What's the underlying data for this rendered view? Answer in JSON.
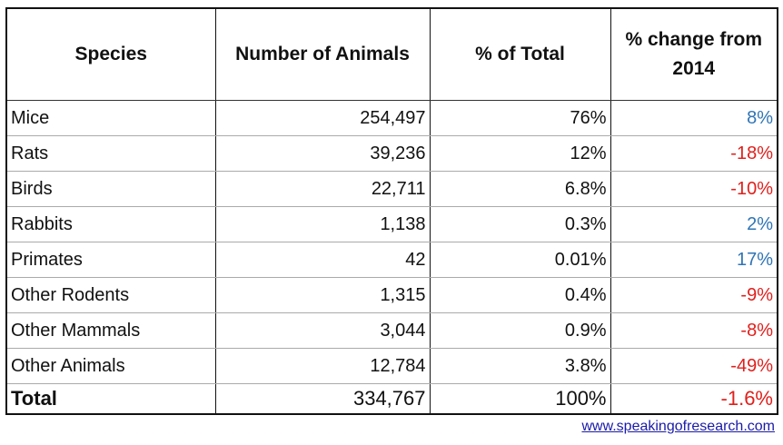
{
  "colors": {
    "positive": "#2e75b6",
    "negative": "#e0201c"
  },
  "headers": [
    "Species",
    "Number of Animals",
    "% of Total",
    "% change from 2014"
  ],
  "rows": [
    {
      "species": "Mice",
      "number": "254,497",
      "percent": "76%",
      "change": "8%",
      "trend": "pos"
    },
    {
      "species": "Rats",
      "number": "39,236",
      "percent": "12%",
      "change": "-18%",
      "trend": "neg"
    },
    {
      "species": "Birds",
      "number": "22,711",
      "percent": "6.8%",
      "change": "-10%",
      "trend": "neg"
    },
    {
      "species": "Rabbits",
      "number": "1,138",
      "percent": "0.3%",
      "change": "2%",
      "trend": "pos"
    },
    {
      "species": "Primates",
      "number": "42",
      "percent": "0.01%",
      "change": "17%",
      "trend": "pos"
    },
    {
      "species": "Other Rodents",
      "number": "1,315",
      "percent": "0.4%",
      "change": "-9%",
      "trend": "neg"
    },
    {
      "species": "Other Mammals",
      "number": "3,044",
      "percent": "0.9%",
      "change": "-8%",
      "trend": "neg"
    },
    {
      "species": "Other Animals",
      "number": "12,784",
      "percent": "3.8%",
      "change": "-49%",
      "trend": "neg"
    }
  ],
  "total": {
    "species": "Total",
    "number": "334,767",
    "percent": "100%",
    "change": "-1.6%",
    "trend": "neg"
  },
  "footer_link": "www.speakingofresearch.com"
}
